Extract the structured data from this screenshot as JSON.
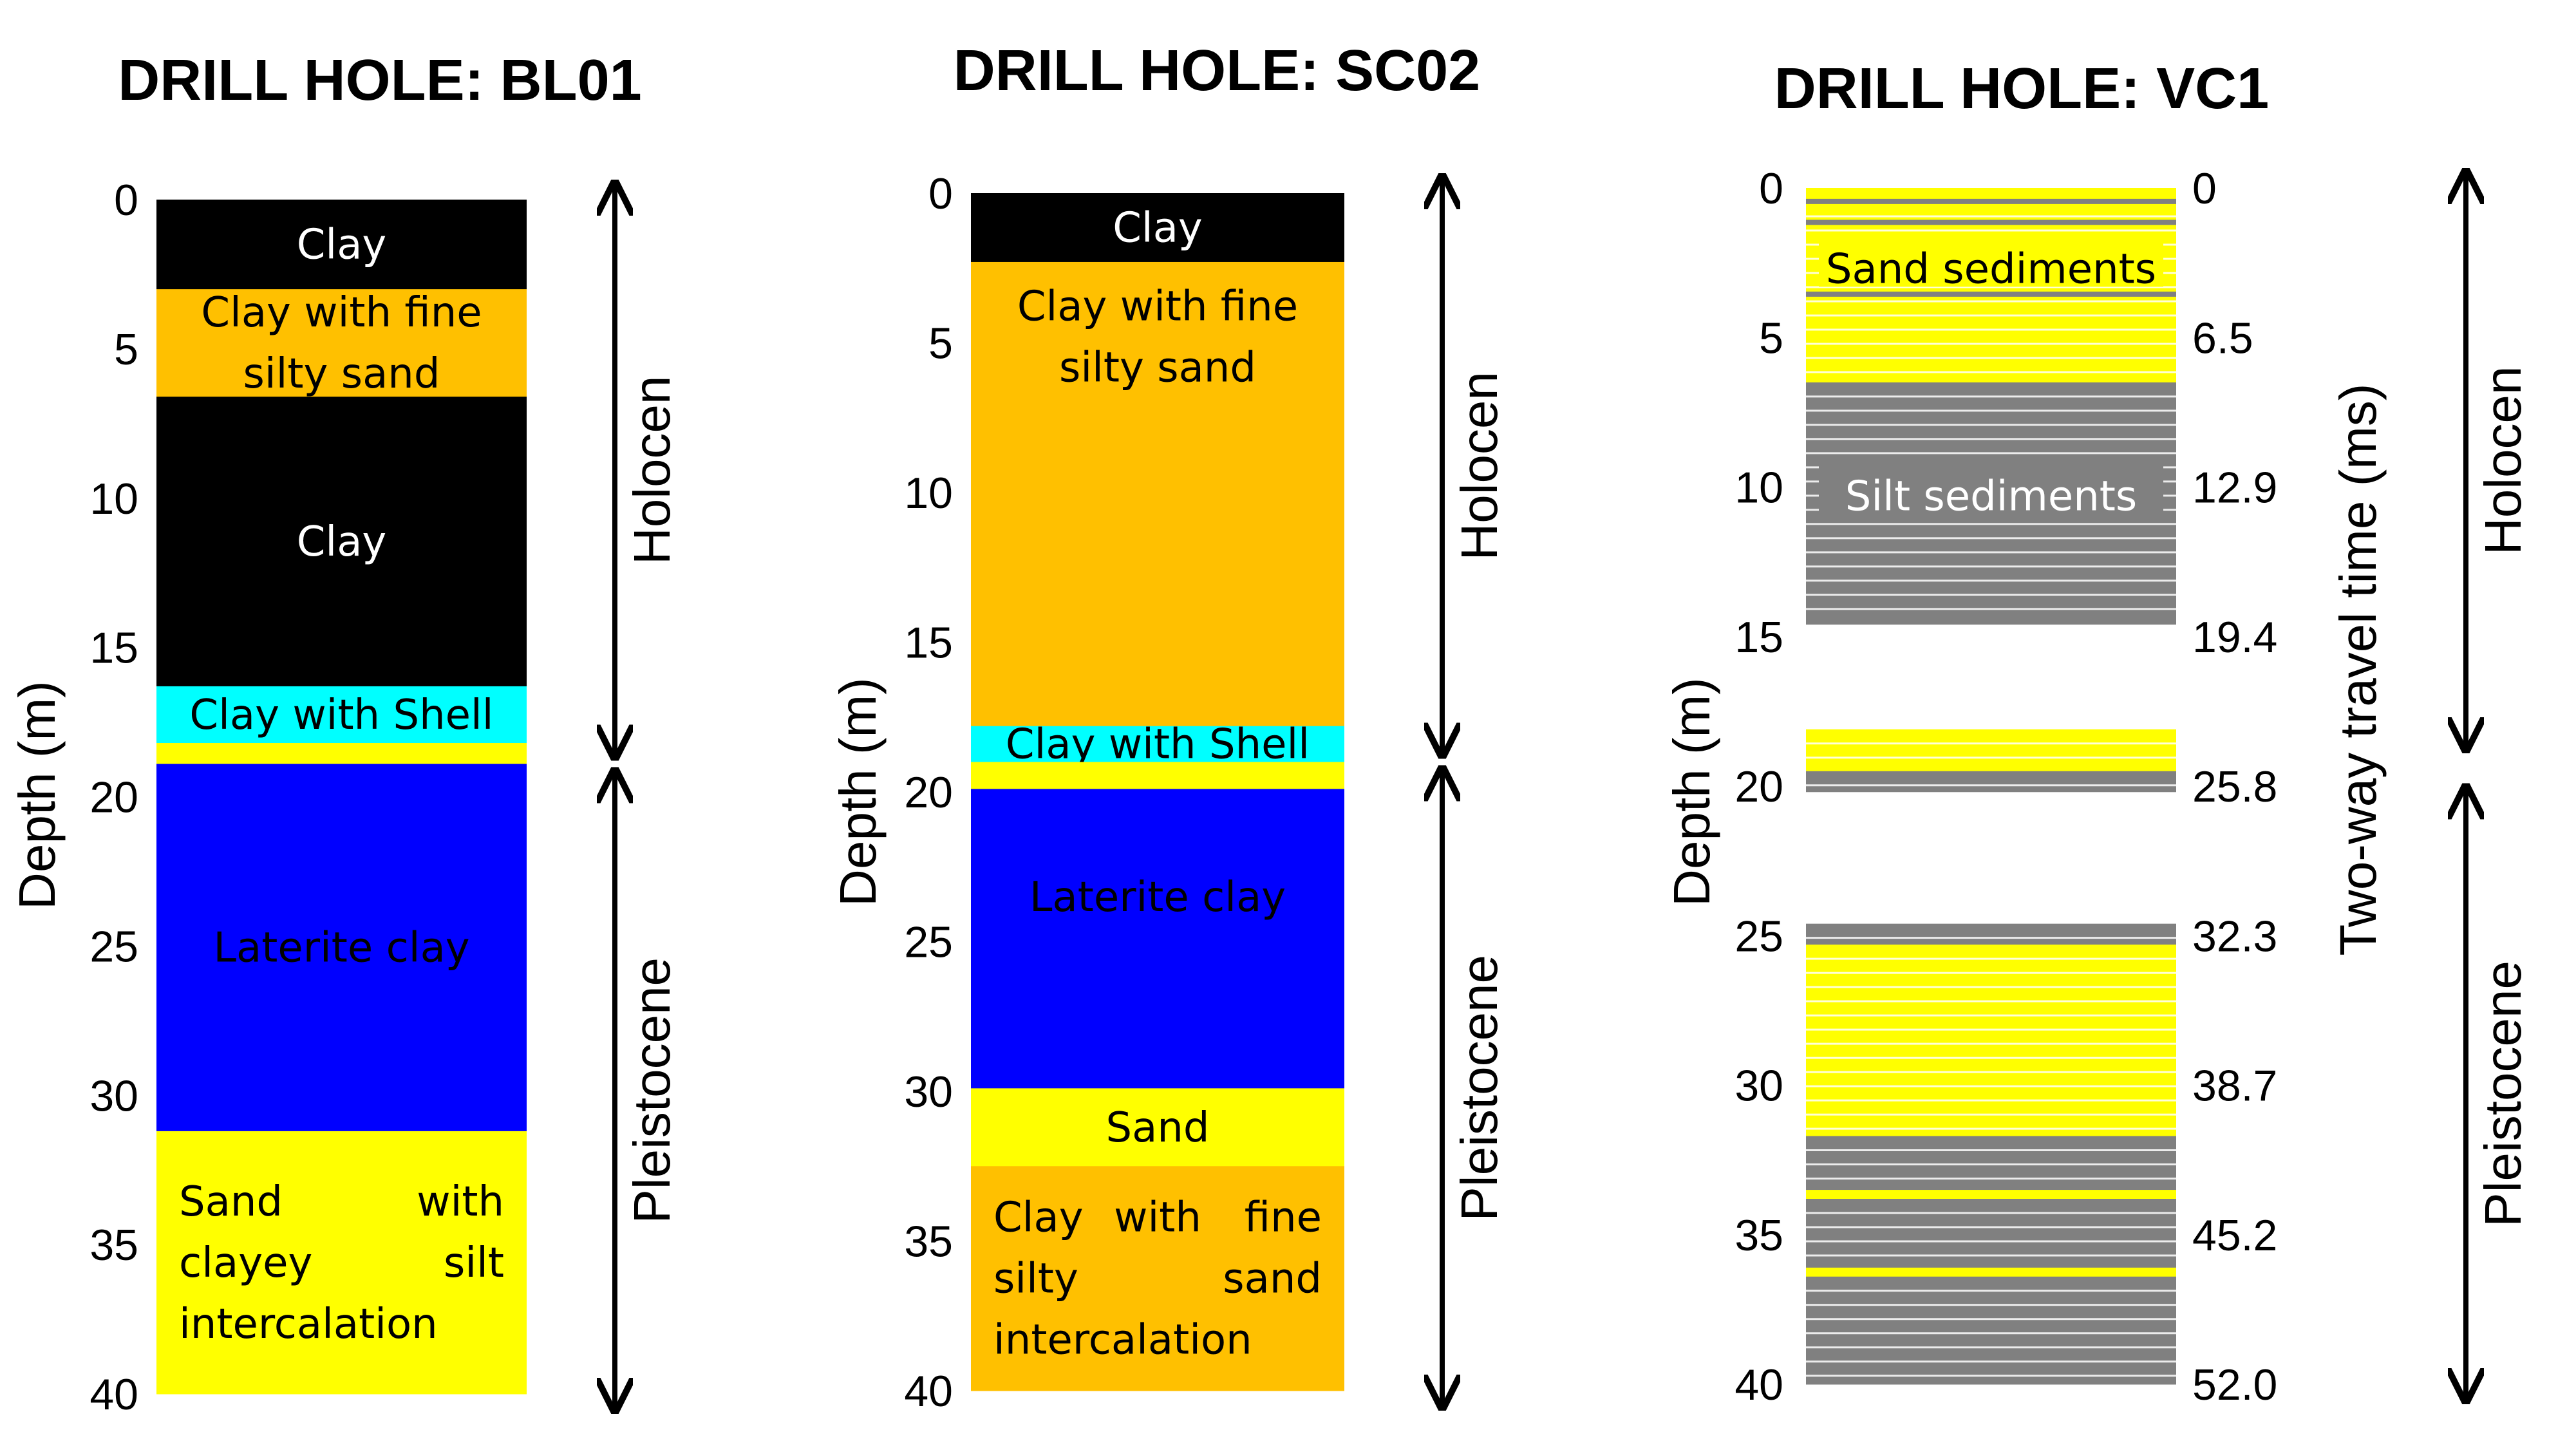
{
  "chart_data": [
    {
      "type": "lithologic-column",
      "title": "DRILL HOLE: BL01",
      "ylabel": "Depth (m)",
      "ylim": [
        0,
        40
      ],
      "yticks": [
        "0",
        "5",
        "10",
        "15",
        "20",
        "25",
        "30",
        "35",
        "40"
      ],
      "layers": [
        {
          "top": 0,
          "bottom": 3,
          "color": "#000000",
          "text_color": "#ffffff",
          "label": [
            "Clay"
          ]
        },
        {
          "top": 3,
          "bottom": 6.6,
          "color": "#ffc000",
          "text_color": "#000000",
          "label": [
            "Clay with fine",
            "silty sand"
          ]
        },
        {
          "top": 6.6,
          "bottom": 16.3,
          "color": "#000000",
          "text_color": "#ffffff",
          "label": [
            "Clay"
          ]
        },
        {
          "top": 16.3,
          "bottom": 18.2,
          "color": "#00ffff",
          "text_color": "#000000",
          "label": [
            "Clay with Shell"
          ]
        },
        {
          "top": 18.2,
          "bottom": 18.9,
          "color": "#ffff00",
          "text_color": "#000000",
          "label": []
        },
        {
          "top": 18.9,
          "bottom": 31.2,
          "color": "#0000ff",
          "text_color": "#000000",
          "label": [
            "Laterite clay"
          ]
        },
        {
          "top": 31.2,
          "bottom": 40,
          "color": "#ffff00",
          "text_color": "#000000",
          "label": [
            [
              "Sand",
              "with"
            ],
            [
              "clayey",
              "silt"
            ],
            [
              "intercalation"
            ]
          ],
          "justify": true
        }
      ],
      "epochs": [
        {
          "label": "Holocen",
          "top": 0,
          "bottom": 18.9
        },
        {
          "label": "Pleistocene",
          "top": 18.9,
          "bottom": 40
        }
      ]
    },
    {
      "type": "lithologic-column",
      "title": "DRILL HOLE: SC02",
      "ylabel": "Depth (m)",
      "ylim": [
        0,
        40
      ],
      "yticks": [
        "0",
        "5",
        "10",
        "15",
        "20",
        "25",
        "30",
        "35",
        "40"
      ],
      "layers": [
        {
          "top": 0,
          "bottom": 2.3,
          "color": "#000000",
          "text_color": "#ffffff",
          "label": [
            "Clay"
          ]
        },
        {
          "top": 2.3,
          "bottom": 17.8,
          "color": "#ffc000",
          "text_color": "#000000",
          "label": [
            "Clay with fine",
            "silty sand"
          ],
          "label_at": 4.8
        },
        {
          "top": 17.8,
          "bottom": 19.0,
          "color": "#00ffff",
          "text_color": "#000000",
          "label": [
            "Clay with Shell"
          ]
        },
        {
          "top": 19.0,
          "bottom": 19.9,
          "color": "#ffff00",
          "text_color": "#000000",
          "label": []
        },
        {
          "top": 19.9,
          "bottom": 29.9,
          "color": "#0000ff",
          "text_color": "#000000",
          "label": [
            "Laterite clay"
          ],
          "label_at": 23.5
        },
        {
          "top": 29.9,
          "bottom": 32.5,
          "color": "#ffff00",
          "text_color": "#000000",
          "label": [
            "Sand"
          ]
        },
        {
          "top": 32.5,
          "bottom": 40,
          "color": "#ffc000",
          "text_color": "#000000",
          "label": [
            [
              "Clay",
              "with",
              "fine"
            ],
            [
              "silty",
              "sand"
            ],
            [
              "intercalation"
            ]
          ],
          "justify": true
        }
      ],
      "epochs": [
        {
          "label": "Holocen",
          "top": 0,
          "bottom": 19.0
        },
        {
          "label": "Pleistocene",
          "top": 19.0,
          "bottom": 40
        }
      ]
    },
    {
      "type": "lithologic-column",
      "title": "DRILL HOLE: VC1",
      "ylabel": "Depth (m)",
      "y2label": "Two-way travel time (ms)",
      "ylim": [
        0,
        40
      ],
      "yticks": [
        "0",
        "5",
        "10",
        "15",
        "20",
        "25",
        "30",
        "35",
        "40"
      ],
      "y2ticks": [
        "0",
        "6.5",
        "12.9",
        "19.4",
        "25.8",
        "32.3",
        "38.7",
        "45.2",
        "52.0"
      ],
      "zones": [
        {
          "top": 0,
          "bottom": 6.5,
          "color": "#ffff00"
        },
        {
          "top": 6.5,
          "bottom": 14.6,
          "color": "#808080"
        },
        {
          "top": 14.6,
          "bottom": 18.1,
          "color": "#ffffff"
        },
        {
          "top": 18.1,
          "bottom": 19.5,
          "color": "#ffff00"
        },
        {
          "top": 19.5,
          "bottom": 20.2,
          "color": "#808080"
        },
        {
          "top": 20.2,
          "bottom": 24.6,
          "color": "#ffffff"
        },
        {
          "top": 24.6,
          "bottom": 25.3,
          "color": "#808080"
        },
        {
          "top": 25.3,
          "bottom": 31.7,
          "color": "#ffff00"
        },
        {
          "top": 31.7,
          "bottom": 33.5,
          "color": "#808080"
        },
        {
          "top": 33.5,
          "bottom": 33.8,
          "color": "#ffff00"
        },
        {
          "top": 33.8,
          "bottom": 36.1,
          "color": "#808080"
        },
        {
          "top": 36.1,
          "bottom": 36.4,
          "color": "#ffff00"
        },
        {
          "top": 36.4,
          "bottom": 40,
          "color": "#808080"
        }
      ],
      "labels": [
        {
          "text": "Sand sediments",
          "depth": 2.7,
          "color": "#000000"
        },
        {
          "text": "Silt sediments",
          "depth": 10.3,
          "color": "#ffffff"
        }
      ],
      "epochs": [
        {
          "label": "Holocen",
          "top": 0,
          "bottom": 19.0
        },
        {
          "label": "Pleistocene",
          "top": 19.8,
          "bottom": 40
        }
      ]
    }
  ]
}
